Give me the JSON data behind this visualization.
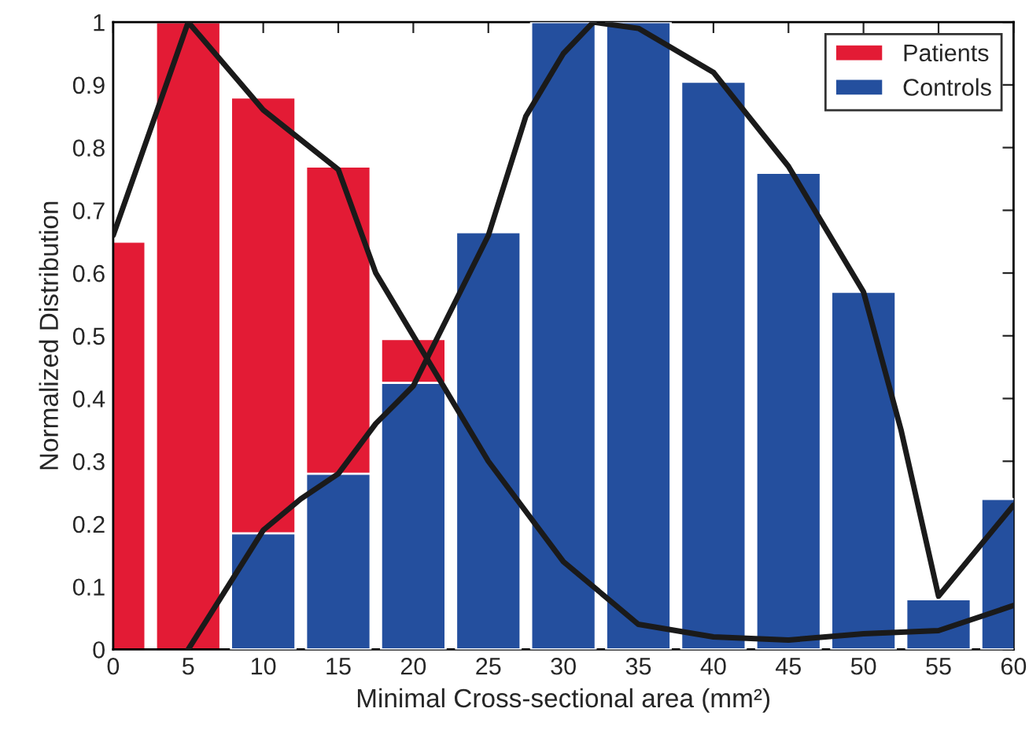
{
  "chart_data": {
    "type": "bar",
    "xlabel": "Minimal Cross-sectional area (mm²)",
    "ylabel": "Normalized Distribution",
    "x": [
      0,
      5,
      10,
      15,
      20,
      25,
      30,
      35,
      40,
      45,
      50,
      55,
      60
    ],
    "xlim": [
      0,
      60
    ],
    "ylim": [
      0,
      1
    ],
    "xticks": [
      0,
      5,
      10,
      15,
      20,
      25,
      30,
      35,
      40,
      45,
      50,
      55,
      60
    ],
    "yticks": [
      0,
      0.1,
      0.2,
      0.3,
      0.4,
      0.5,
      0.6,
      0.7,
      0.8,
      0.9,
      1
    ],
    "grid": false,
    "legend": "top right",
    "series": [
      {
        "name": "Patients",
        "color": "#e31b35",
        "values": [
          0.65,
          1.0,
          0.88,
          0.77,
          0.495,
          null,
          null,
          null,
          null,
          null,
          null,
          null,
          null
        ]
      },
      {
        "name": "Controls",
        "color": "#244f9e",
        "values": [
          null,
          null,
          0.185,
          0.28,
          0.425,
          0.665,
          1.0,
          1.0,
          0.905,
          0.76,
          0.57,
          0.08,
          0.24
        ]
      },
      {
        "type": "line",
        "color": "#1a1a1a",
        "x": [
          0,
          5,
          10,
          15,
          17.5,
          20,
          25,
          30,
          35,
          40,
          45,
          50,
          55,
          60
        ],
        "values": [
          0.66,
          1.0,
          0.86,
          0.765,
          0.6,
          0.5,
          0.3,
          0.14,
          0.04,
          0.02,
          0.015,
          0.025,
          0.03,
          0.07
        ]
      },
      {
        "type": "line",
        "color": "#1a1a1a",
        "x": [
          5,
          10,
          12.5,
          15,
          17.5,
          20,
          25,
          27.5,
          30,
          32,
          35,
          40,
          45,
          50,
          52.5,
          55,
          60
        ],
        "values": [
          0,
          0.19,
          0.24,
          0.28,
          0.36,
          0.42,
          0.66,
          0.85,
          0.95,
          1.0,
          0.99,
          0.92,
          0.77,
          0.57,
          0.35,
          0.085,
          0.23
        ]
      }
    ]
  }
}
